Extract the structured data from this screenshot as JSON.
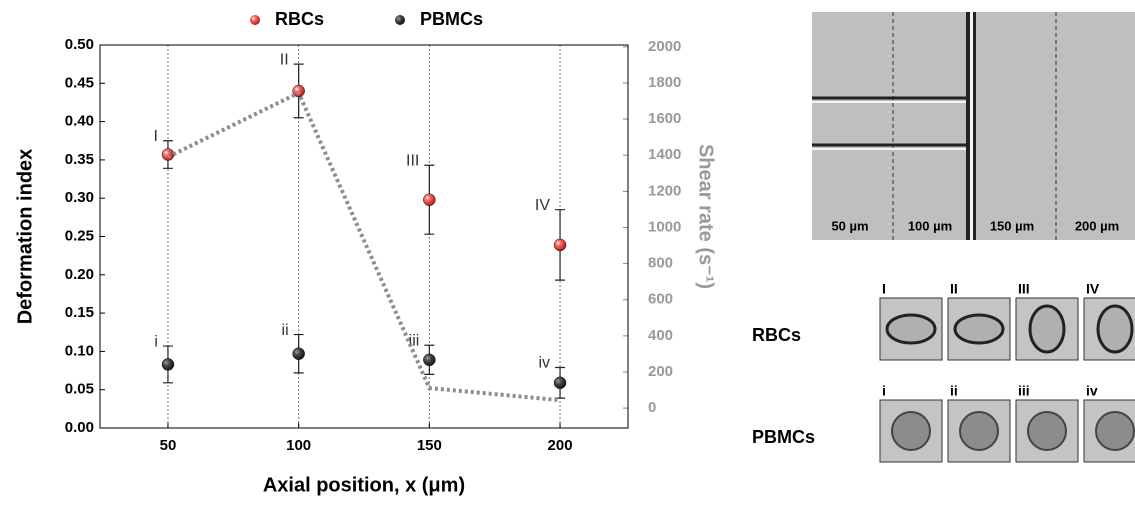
{
  "chart_data": {
    "type": "scatter",
    "x_label": "Axial position, x (μm)",
    "y_label": "Deformation index",
    "y2_label": "Shear rate (s⁻¹)",
    "x": [
      50,
      100,
      150,
      200
    ],
    "xlim": [
      24,
      226
    ],
    "xticks": [
      50,
      100,
      150,
      200
    ],
    "ylim": [
      0,
      0.5
    ],
    "yticks": [
      {
        "value": 0,
        "label": "0.00"
      },
      0.05,
      {
        "value": 0.1,
        "label": "0.10"
      },
      0.15,
      {
        "value": 0.2,
        "label": "0.20"
      },
      0.25,
      {
        "value": 0.3,
        "label": "0.30"
      },
      0.35,
      {
        "value": 0.4,
        "label": "0.40"
      },
      0.45,
      {
        "value": 0.5,
        "label": "0.50"
      }
    ],
    "y2lim": [
      -110,
      2010
    ],
    "y2ticks": [
      0,
      200,
      400,
      600,
      800,
      1000,
      1200,
      1400,
      1600,
      1800,
      2000
    ],
    "grid": "x",
    "legend": "top",
    "series": [
      {
        "name": "RBCs",
        "color": "#e3201b",
        "values": [
          0.357,
          0.44,
          0.298,
          0.239
        ],
        "errors": [
          0.018,
          0.035,
          0.045,
          0.046
        ],
        "labels": [
          "I",
          "II",
          "III",
          "IV"
        ]
      },
      {
        "name": "PBMCs",
        "color": "#3a3a3a",
        "values": [
          0.083,
          0.097,
          0.089,
          0.059
        ],
        "errors": [
          0.024,
          0.025,
          0.019,
          0.02
        ],
        "labels": [
          "i",
          "ii",
          "iii",
          "iv"
        ]
      },
      {
        "color": "#8c8c8c",
        "axis": "y2",
        "values": [
          1390,
          1745,
          111,
          44
        ]
      }
    ]
  },
  "micrograph": {
    "labels": [
      "50 µm",
      "100 µm",
      "150 µm",
      "200 µm"
    ]
  },
  "cell_panel": {
    "rows": [
      {
        "label": "RBCs",
        "cells": [
          "I",
          "II",
          "III",
          "IV"
        ]
      },
      {
        "label": "PBMCs",
        "cells": [
          "i",
          "ii",
          "iii",
          "iv"
        ]
      }
    ]
  }
}
